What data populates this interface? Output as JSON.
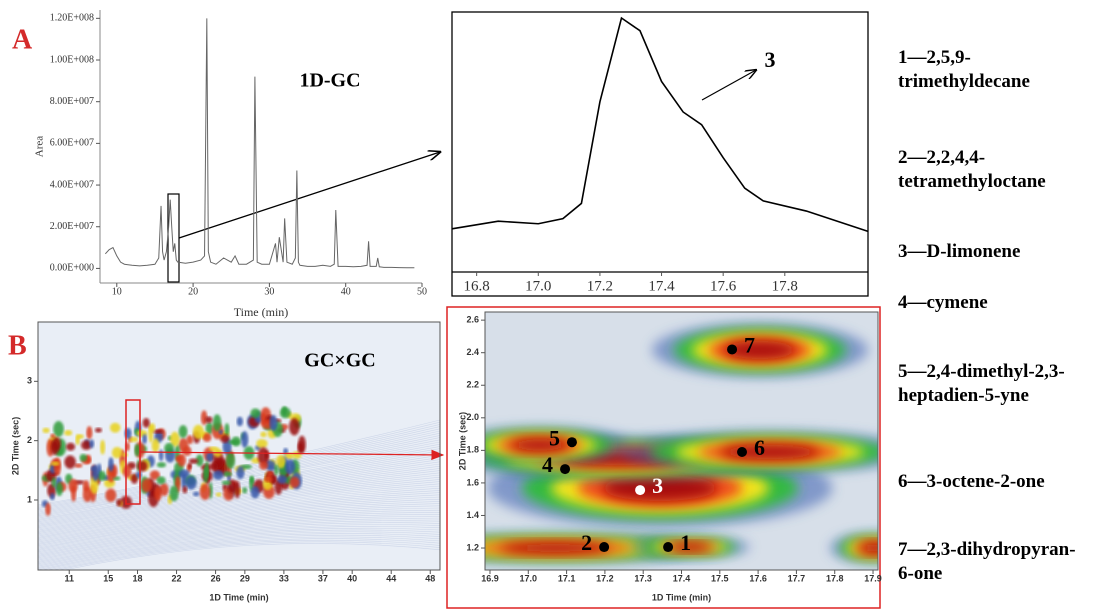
{
  "panel_labels": [
    "A",
    "B"
  ],
  "compound_list": [
    "1—2,5,9-trimethyldecane",
    "2—2,2,4,4-tetramethyloctane",
    "3—D-limonene",
    "4—cymene",
    "5—2,4-dimethyl-2,3-heptadien-5-yne",
    "6—3-octene-2-one",
    "7—2,3-dihydropyran-6-one"
  ],
  "chart_data": [
    {
      "type": "line",
      "annotation": "1D-GC",
      "xlabel": "Time (min)",
      "ylabel": "Area",
      "color": "#666666",
      "x": [
        8.5,
        9,
        9.5,
        10,
        10.5,
        11,
        12,
        13,
        14,
        15,
        15.5,
        15.8,
        16,
        16.2,
        16.5,
        16.8,
        17,
        17.2,
        17.4,
        17.6,
        17.8,
        18,
        19,
        20,
        21,
        21.5,
        21.8,
        22,
        22.3,
        23,
        24,
        25,
        25.5,
        26,
        27,
        27.9,
        28.1,
        28.4,
        29,
        30,
        30.8,
        31,
        31.3,
        31.8,
        32,
        32.3,
        33,
        33.4,
        33.6,
        33.8,
        34,
        35,
        36,
        37,
        38,
        38.5,
        38.7,
        39,
        40,
        41,
        42,
        42.8,
        43,
        43.2,
        44,
        44.2,
        44.4,
        45,
        46,
        47,
        48,
        49
      ],
      "values": [
        7000000,
        9000000,
        10000000,
        6000000,
        3000000,
        2000000,
        1500000,
        1200000,
        1500000,
        2000000,
        5000000,
        30000000,
        8000000,
        4000000,
        8000000,
        20000000,
        33000000,
        20000000,
        8000000,
        12000000,
        4000000,
        3000000,
        2500000,
        3000000,
        4000000,
        6000000,
        120000000,
        8000000,
        3000000,
        2000000,
        5000000,
        3000000,
        6000000,
        2000000,
        2000000,
        4000000,
        92000000,
        3000000,
        2000000,
        2000000,
        12000000,
        3000000,
        15000000,
        3000000,
        24000000,
        3000000,
        2000000,
        5000000,
        47000000,
        3000000,
        1500000,
        1000000,
        1000000,
        1500000,
        1000000,
        2000000,
        28000000,
        1000000,
        1000000,
        800000,
        1000000,
        1500000,
        13000000,
        1000000,
        1000000,
        5000000,
        800000,
        500000,
        500000,
        400000,
        300000,
        300000
      ],
      "xlim": [
        7.8,
        50
      ],
      "ylim": [
        -7000000,
        124000000
      ],
      "xticks": [
        10,
        20,
        30,
        40,
        50
      ],
      "yticks": [
        {
          "value": 0,
          "label": "0.00E+000"
        },
        {
          "value": 20000000,
          "label": "2.00E+007"
        },
        {
          "value": 40000000,
          "label": "4.00E+007"
        },
        {
          "value": 60000000,
          "label": "6.00E+007"
        },
        {
          "value": 80000000,
          "label": "8.00E+007"
        },
        {
          "value": 100000000,
          "label": "1.00E+008"
        },
        {
          "value": 120000000,
          "label": "1.20E+008"
        }
      ]
    },
    {
      "type": "line",
      "annotation": "3",
      "color": "#000000",
      "x": [
        16.72,
        16.87,
        17.0,
        17.08,
        17.14,
        17.2,
        17.27,
        17.33,
        17.4,
        17.47,
        17.53,
        17.6,
        17.67,
        17.73,
        17.87,
        18.07
      ],
      "values": [
        17,
        20,
        19,
        21,
        27,
        67,
        100,
        95,
        75,
        63,
        58,
        45,
        33,
        28,
        24,
        16
      ],
      "xlim": [
        16.72,
        18.07
      ],
      "ylim": [
        0,
        100
      ],
      "xticks": [
        16.8,
        {
          "value": 17,
          "label": "17.0"
        },
        17.2,
        17.4,
        17.6,
        17.8
      ]
    },
    {
      "type": "heatmap",
      "annotation": "GC×GC",
      "xlabel": "1D Time (min)",
      "ylabel": "2D Time (sec)",
      "xlim": [
        7.8,
        49
      ],
      "ylim": [
        -0.18,
        4.0
      ],
      "xticks": [
        11,
        15,
        18,
        22,
        26,
        29,
        33,
        37,
        40,
        44,
        48
      ],
      "yticks": [
        1,
        2,
        3
      ]
    },
    {
      "type": "scatter",
      "xlabel": "1D Time (min)",
      "ylabel": "2D Time (sec)",
      "point_labels": [
        "1",
        "2",
        "3",
        "4",
        "5",
        "6",
        "7"
      ],
      "x": [
        17.365,
        17.198,
        17.292,
        17.096,
        17.114,
        17.558,
        17.532
      ],
      "values": [
        1.206,
        1.206,
        1.556,
        1.685,
        1.85,
        1.79,
        2.42
      ],
      "colors": [
        "#000000",
        "#000000",
        "#ffffff",
        "#000000",
        "#000000",
        "#000000",
        "#000000"
      ],
      "xlim": [
        16.887,
        17.913
      ],
      "ylim": [
        1.065,
        2.65
      ],
      "xticks": [
        16.9,
        {
          "value": 17,
          "label": "17.0"
        },
        17.1,
        17.2,
        17.3,
        17.4,
        17.5,
        17.6,
        17.7,
        17.8,
        17.9
      ],
      "yticks": [
        1.2,
        1.4,
        1.6,
        1.8,
        {
          "value": 2,
          "label": "2.0"
        },
        2.2,
        2.4,
        2.6
      ]
    }
  ]
}
